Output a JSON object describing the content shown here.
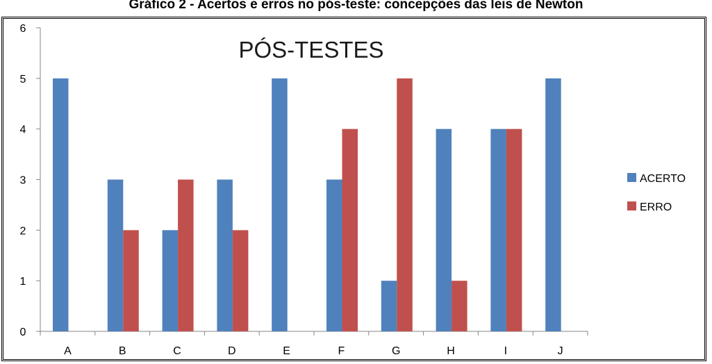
{
  "caption": "Gráfico 2 - Acertos e erros no pós-teste: concepções das leis de Newton",
  "chart_data": {
    "type": "bar",
    "title": "PÓS-TESTES",
    "categories": [
      "A",
      "B",
      "C",
      "D",
      "E",
      "F",
      "G",
      "H",
      "I",
      "J"
    ],
    "series": [
      {
        "name": "ACERTO",
        "color": "#4F81BD",
        "values": [
          5,
          3,
          2,
          3,
          5,
          3,
          1,
          4,
          4,
          5
        ]
      },
      {
        "name": "ERRO",
        "color": "#C0504D",
        "values": [
          0,
          2,
          3,
          2,
          0,
          4,
          5,
          1,
          4,
          0
        ]
      }
    ],
    "ylim": [
      0,
      6
    ],
    "yticks": [
      0,
      1,
      2,
      3,
      4,
      5,
      6
    ],
    "xlabel": "",
    "ylabel": "",
    "grid": false,
    "legend_position": "right"
  }
}
